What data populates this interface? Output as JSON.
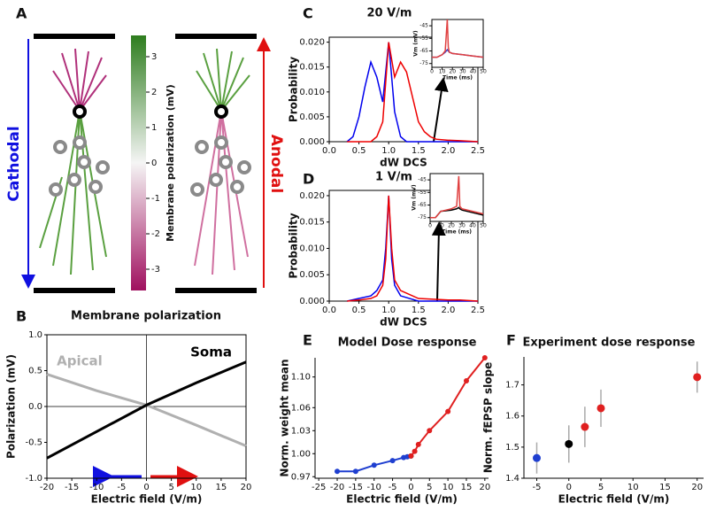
{
  "panel_labels": [
    "A",
    "B",
    "C",
    "D",
    "E",
    "F"
  ],
  "diagram": {
    "left_label": "Cathodal",
    "right_label": "Anodal",
    "colorbar_label": "Membrane polarization (mV)",
    "colorbar_ticks": [
      3,
      2,
      1,
      0,
      -1,
      -2,
      -3
    ],
    "colorbar_lim": [
      -3.6,
      3.6
    ]
  },
  "chart_data": [
    {
      "type": "line",
      "title": "Membrane polarization",
      "x_label": "Electric field (V/m)",
      "y_label": "Polarization (mV)",
      "xlim": [
        -20,
        20
      ],
      "ylim": [
        -1,
        1
      ],
      "xticks": [
        -20,
        -15,
        -10,
        -5,
        0,
        5,
        10,
        15,
        20
      ],
      "yticks": [
        {
          "value": -1,
          "label": "-1.0"
        },
        {
          "value": -0.5,
          "label": "-0.5"
        },
        {
          "value": 0,
          "label": "0.0"
        },
        {
          "value": 0.5,
          "label": "0.5"
        },
        {
          "value": 1,
          "label": "1.0"
        }
      ],
      "zero_lines": true,
      "series": [
        {
          "name": "Apical",
          "color": "#b0b0b0",
          "x": [
            -20,
            -10,
            0,
            10,
            20
          ],
          "values": [
            0.45,
            0.22,
            0.02,
            -0.26,
            -0.55
          ]
        },
        {
          "name": "Soma",
          "color": "#000000",
          "x": [
            -20,
            -10,
            0,
            10,
            20
          ],
          "values": [
            -0.72,
            -0.35,
            0.02,
            0.33,
            0.62
          ]
        }
      ]
    },
    {
      "type": "line",
      "title": "20 V/m",
      "x_label": "dW DCS",
      "y_label": "Probability",
      "xlim": [
        0,
        2.5
      ],
      "ylim": [
        0,
        0.021
      ],
      "xticks": [
        {
          "value": 0,
          "label": "0.0"
        },
        0.5,
        {
          "value": 1,
          "label": "1.0"
        },
        1.5,
        {
          "value": 2,
          "label": "2.0"
        },
        2.5
      ],
      "yticks": [
        {
          "value": 0,
          "label": "0.000"
        },
        0.005,
        {
          "value": 0.01,
          "label": "0.010"
        },
        0.015,
        {
          "value": 0.02,
          "label": "0.020"
        }
      ],
      "x": [
        0.3,
        0.4,
        0.5,
        0.6,
        0.7,
        0.8,
        0.9,
        1.0,
        1.1,
        1.2,
        1.3,
        1.4,
        1.5,
        1.6,
        1.7,
        1.8,
        2.0,
        2.2,
        2.5
      ],
      "series": [
        {
          "color": "#0000ee",
          "values": [
            0,
            0.001,
            0.005,
            0.011,
            0.016,
            0.013,
            0.008,
            0.02,
            0.006,
            0.001,
            0,
            0,
            0,
            0,
            0,
            0,
            0,
            0,
            0
          ]
        },
        {
          "color": "#ee0000",
          "values": [
            0,
            0,
            0,
            0,
            0,
            0.001,
            0.004,
            0.02,
            0.013,
            0.016,
            0.014,
            0.009,
            0.004,
            0.002,
            0.001,
            0.0005,
            0.0003,
            0.0002,
            0
          ]
        }
      ]
    },
    {
      "type": "line",
      "x_label": "Time (ms)",
      "y_label": "Vm (mV)",
      "xlim": [
        0,
        50
      ],
      "ylim": [
        -78,
        -40
      ],
      "xticks": [
        0,
        10,
        20,
        30,
        40,
        50
      ],
      "yticks": [
        -45,
        -55,
        -65,
        -75
      ],
      "x": [
        0,
        5,
        10,
        13,
        15,
        16,
        17,
        20,
        30,
        40,
        50
      ],
      "series": [
        {
          "color": "#4040c0",
          "values": [
            -70,
            -70,
            -68,
            -66,
            -64,
            -65,
            -66,
            -67,
            -68,
            -69,
            -70
          ]
        },
        {
          "color": "#e04040",
          "values": [
            -70,
            -70,
            -68,
            -65,
            -40,
            -62,
            -66,
            -67,
            -68,
            -69,
            -70
          ]
        }
      ]
    },
    {
      "type": "line",
      "title": "1 V/m",
      "x_label": "dW DCS",
      "y_label": "Probability",
      "xlim": [
        0,
        2.5
      ],
      "ylim": [
        0,
        0.021
      ],
      "xticks": [
        {
          "value": 0,
          "label": "0.0"
        },
        0.5,
        {
          "value": 1,
          "label": "1.0"
        },
        1.5,
        {
          "value": 2,
          "label": "2.0"
        },
        2.5
      ],
      "yticks": [
        {
          "value": 0,
          "label": "0.000"
        },
        0.005,
        {
          "value": 0.01,
          "label": "0.010"
        },
        0.015,
        {
          "value": 0.02,
          "label": "0.020"
        }
      ],
      "x": [
        0.3,
        0.5,
        0.7,
        0.8,
        0.9,
        0.95,
        1.0,
        1.05,
        1.1,
        1.2,
        1.5,
        2.0,
        2.2,
        2.5
      ],
      "series": [
        {
          "color": "#0000ee",
          "values": [
            0,
            0.0005,
            0.001,
            0.002,
            0.004,
            0.01,
            0.02,
            0.008,
            0.003,
            0.001,
            0,
            0,
            0,
            0
          ]
        },
        {
          "color": "#ee0000",
          "values": [
            0,
            0.0002,
            0.0005,
            0.001,
            0.003,
            0.008,
            0.02,
            0.01,
            0.004,
            0.002,
            0.0005,
            0.0002,
            0.0002,
            0
          ]
        }
      ]
    },
    {
      "type": "line",
      "x_label": "Time (ms)",
      "y_label": "Vm (mV)",
      "xlim": [
        0,
        50
      ],
      "ylim": [
        -78,
        -40
      ],
      "xticks": [
        0,
        10,
        20,
        30,
        40,
        50
      ],
      "yticks": [
        -45,
        -55,
        -65,
        -75
      ],
      "x": [
        0,
        5,
        10,
        20,
        25,
        27,
        28,
        30,
        40,
        50
      ],
      "series": [
        {
          "color": "#000000",
          "values": [
            -75,
            -75,
            -70,
            -69,
            -68,
            -67,
            -68,
            -69,
            -71,
            -73
          ]
        },
        {
          "color": "#e04040",
          "values": [
            -75,
            -75,
            -70,
            -68,
            -66,
            -42,
            -66,
            -68,
            -70,
            -72
          ]
        }
      ]
    },
    {
      "type": "line",
      "title": "Model Dose response",
      "x_label": "Electric field (V/m)",
      "y_label": "Norm. weight mean",
      "xlim": [
        -26,
        21
      ],
      "ylim": [
        0.968,
        1.125
      ],
      "xticks": [
        -25,
        -20,
        -15,
        -10,
        -5,
        0,
        5,
        10,
        15,
        20
      ],
      "yticks": [
        0.97,
        {
          "value": 1,
          "label": "1.00"
        },
        1.03,
        1.06,
        {
          "value": 1.1,
          "label": "1.10"
        }
      ],
      "markers": true,
      "series": [
        {
          "color": "#1f3fd0",
          "x": [
            -20,
            -15,
            -10,
            -5,
            -2,
            -1
          ],
          "values": [
            0.977,
            0.977,
            0.985,
            0.991,
            0.995,
            0.996
          ]
        },
        {
          "color": "#000000",
          "x": [
            0
          ],
          "values": [
            0.997
          ]
        },
        {
          "color": "#e02020",
          "x": [
            0,
            1,
            2,
            5,
            10,
            15,
            20
          ],
          "values": [
            0.997,
            1.003,
            1.012,
            1.03,
            1.055,
            1.095,
            1.125
          ]
        }
      ]
    },
    {
      "type": "scatter",
      "title": "Experiment dose response",
      "x_label": "Electric field (V/m)",
      "y_label": "Norm. fEPSP slope",
      "xlim": [
        -7,
        21
      ],
      "ylim": [
        1.4,
        1.79
      ],
      "xticks": [
        -5,
        0,
        5,
        10,
        15,
        20
      ],
      "yticks": [
        1.4,
        1.5,
        1.6,
        1.7
      ],
      "series": [
        {
          "color": "#1f3fd0",
          "x": [
            -5
          ],
          "values": [
            1.465
          ],
          "errors": [
            0.05
          ]
        },
        {
          "color": "#000000",
          "x": [
            0
          ],
          "values": [
            1.51
          ],
          "errors": [
            0.06
          ]
        },
        {
          "color": "#e02020",
          "x": [
            2.5,
            5,
            20
          ],
          "values": [
            1.565,
            1.625,
            1.725
          ],
          "errors": [
            0.065,
            0.06,
            0.05
          ]
        }
      ]
    }
  ]
}
